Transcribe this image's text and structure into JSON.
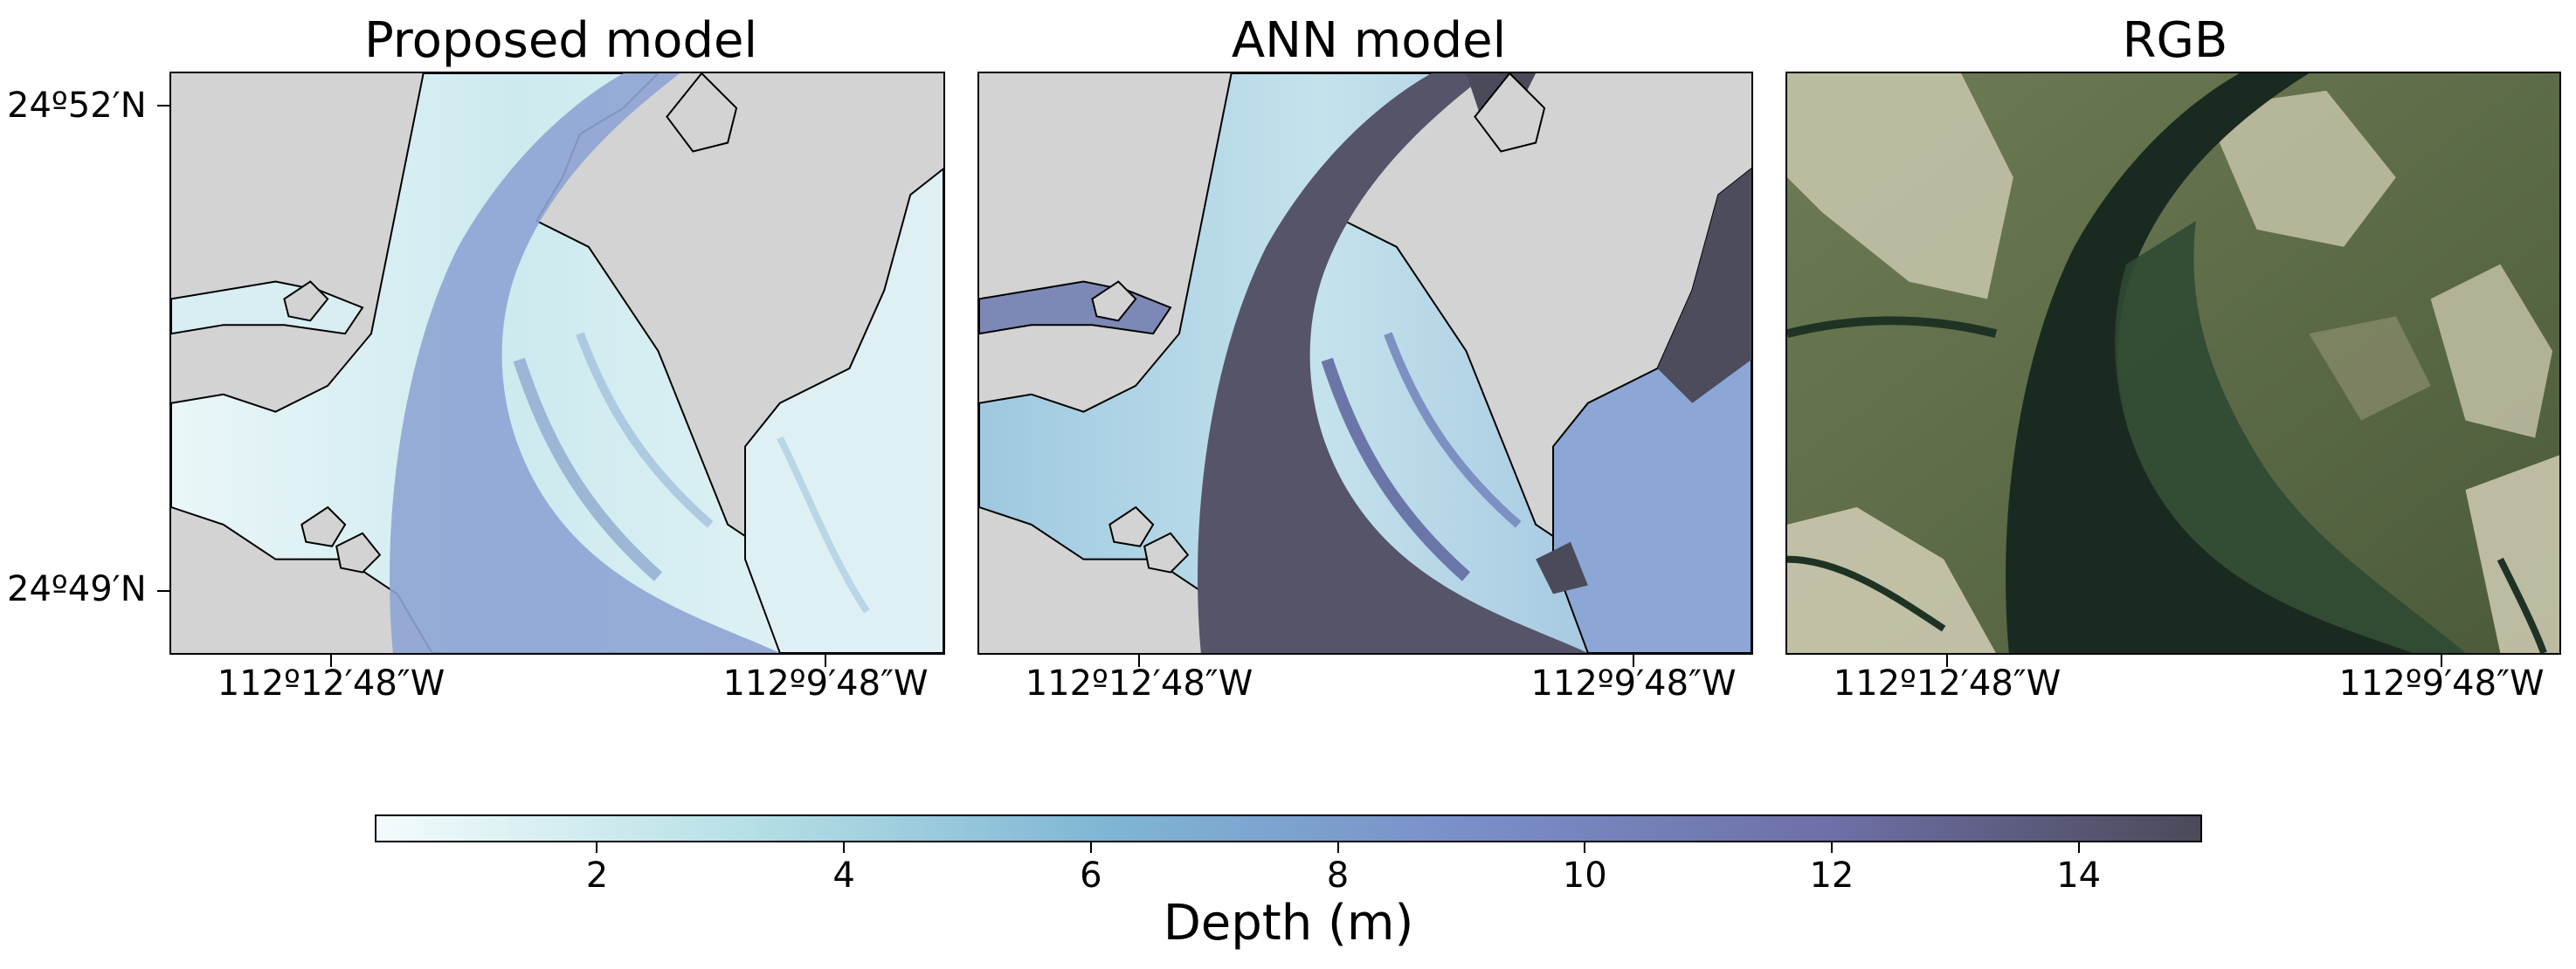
{
  "panels": [
    {
      "title": "Proposed model"
    },
    {
      "title": "ANN model"
    },
    {
      "title": "RGB"
    }
  ],
  "axes": {
    "lat_ticks": [
      "24º52′N",
      "24º49′N"
    ],
    "lon_ticks": [
      "112º12′48″W",
      "112º9′48″W"
    ]
  },
  "colorbar": {
    "label": "Depth (m)",
    "ticks": [
      "2",
      "4",
      "6",
      "8",
      "10",
      "12",
      "14"
    ],
    "range": [
      0.2,
      15
    ],
    "colors": [
      "#f3fbfc",
      "#b7e0e6",
      "#7fb6d4",
      "#7a8ec8",
      "#6e6fa6",
      "#4b4a5a"
    ]
  },
  "colors": {
    "land": "#d3d3d3",
    "rgb_land": "#5f7048",
    "rgb_sand": "#c9c7ae",
    "rgb_water": "#1f3325"
  }
}
